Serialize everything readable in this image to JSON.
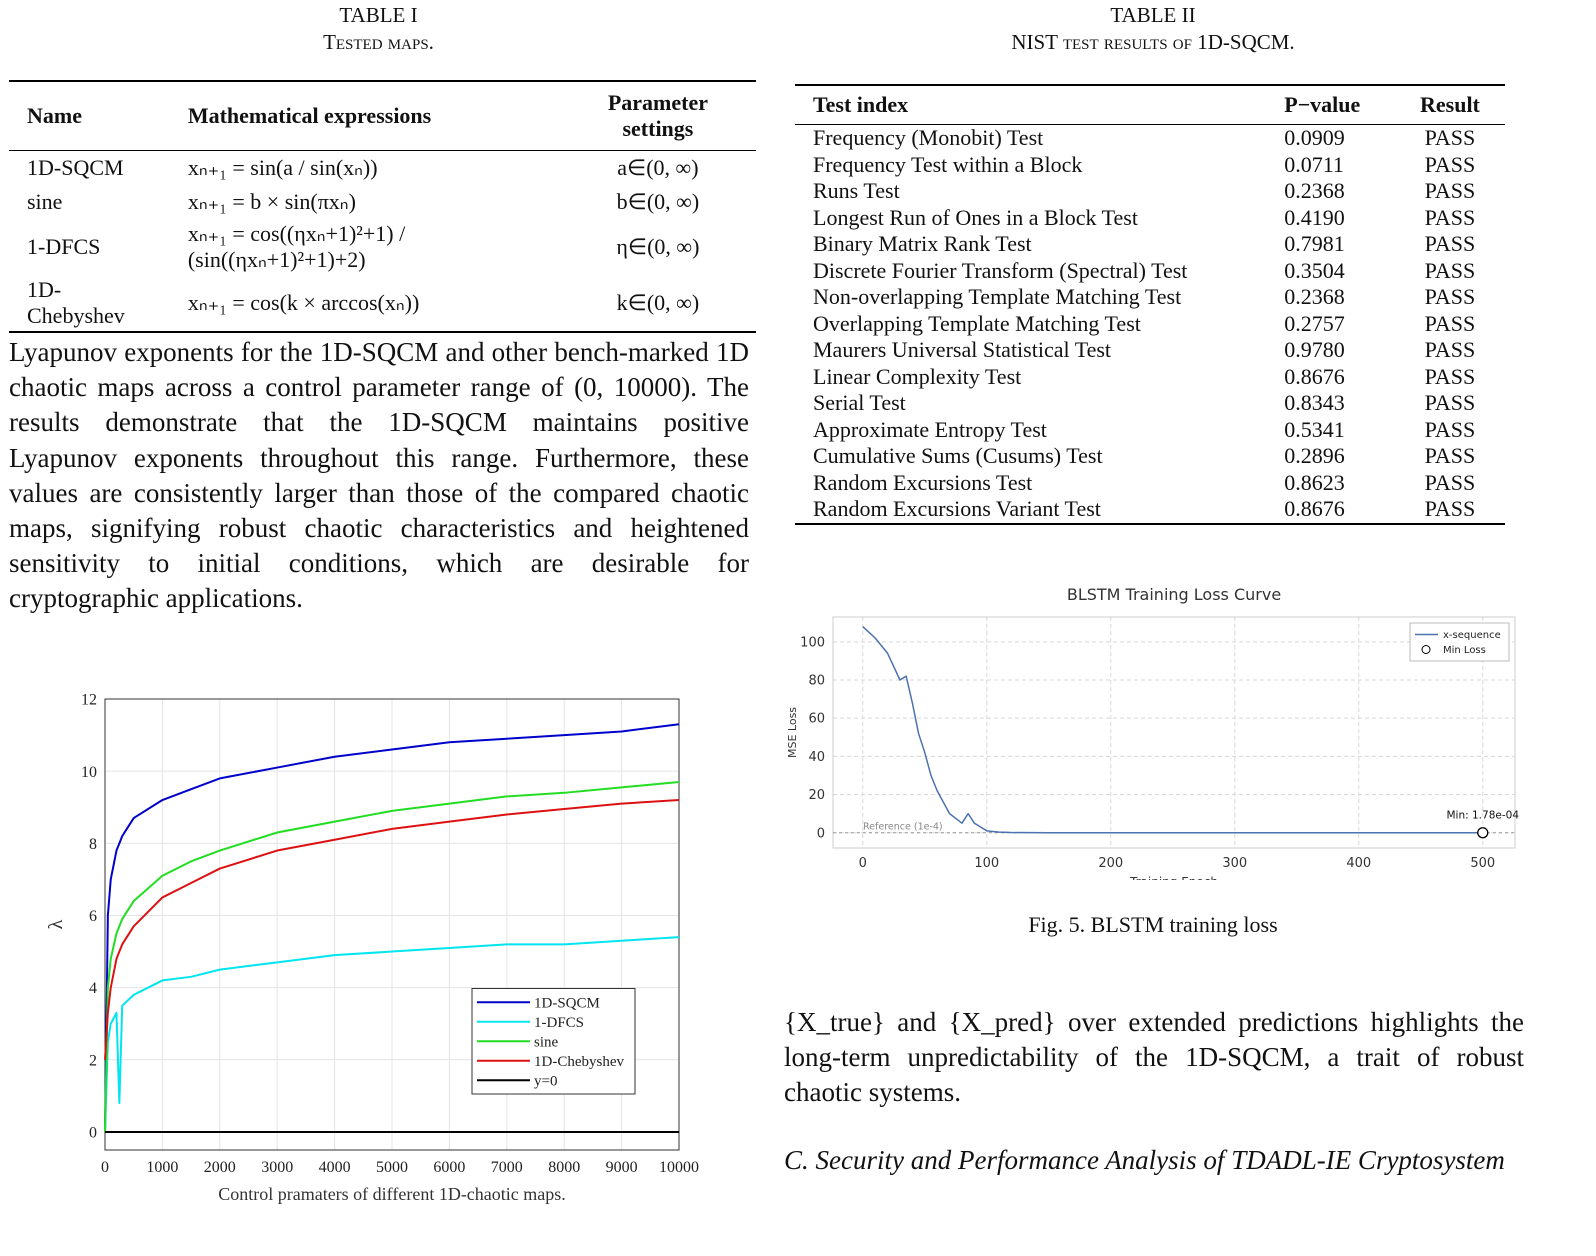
{
  "table1": {
    "caption_number": "TABLE I",
    "caption": "Tested maps.",
    "header": [
      "Name",
      "Mathematical expressions",
      "Parameter settings"
    ],
    "rows": [
      [
        "1D-SQCM",
        "xₙ₊₁ = sin(a / sin(xₙ))",
        "a∈(0, ∞)"
      ],
      [
        "sine",
        "xₙ₊₁ = b × sin(πxₙ)",
        "b∈(0, ∞)"
      ],
      [
        "1-DFCS",
        "xₙ₊₁ = cos((ηxₙ+1)²+1) / (sin((ηxₙ+1)²+1)+2)",
        "η∈(0, ∞)"
      ],
      [
        "1D-Chebyshev",
        "xₙ₊₁ = cos(k × arccos(xₙ))",
        "k∈(0, ∞)"
      ]
    ]
  },
  "paragraph1": "Lyapunov exponents for the 1D-SQCM and other bench-marked 1D chaotic maps across a control parameter range of (0, 10000). The results demonstrate that the 1D-SQCM maintains positive Lyapunov exponents throughout this range. Furthermore, these values are consistently larger than those of the compared chaotic maps, signifying robust chaotic characteristics and heightened sensitivity to initial conditions, which are desirable for cryptographic applications.",
  "table2": {
    "caption_number": "TABLE II",
    "caption": "NIST test results of 1D-SQCM.",
    "header": [
      "Test index",
      "P−value",
      "Result"
    ],
    "rows": [
      [
        "Frequency (Monobit) Test",
        "0.0909",
        "PASS"
      ],
      [
        "Frequency Test within a Block",
        "0.0711",
        "PASS"
      ],
      [
        "Runs Test",
        "0.2368",
        "PASS"
      ],
      [
        "Longest Run of Ones in a Block Test",
        "0.4190",
        "PASS"
      ],
      [
        "Binary Matrix Rank Test",
        "0.7981",
        "PASS"
      ],
      [
        "Discrete Fourier Transform (Spectral) Test",
        "0.3504",
        "PASS"
      ],
      [
        "Non-overlapping Template Matching Test",
        "0.2368",
        "PASS"
      ],
      [
        "Overlapping Template Matching Test",
        "0.2757",
        "PASS"
      ],
      [
        "Maurers Universal Statistical Test",
        "0.9780",
        "PASS"
      ],
      [
        "Linear Complexity Test",
        "0.8676",
        "PASS"
      ],
      [
        "Serial Test",
        "0.8343",
        "PASS"
      ],
      [
        "Approximate Entropy Test",
        "0.5341",
        "PASS"
      ],
      [
        "Cumulative Sums (Cusums) Test",
        "0.2896",
        "PASS"
      ],
      [
        "Random Excursions Test",
        "0.8623",
        "PASS"
      ],
      [
        "Random Excursions Variant Test",
        "0.8676",
        "PASS"
      ]
    ]
  },
  "chart_data": [
    {
      "type": "line",
      "xlabel": "Control pramaters of different 1D-chaotic maps.",
      "ylabel": "λ",
      "x": [
        0,
        50,
        100,
        200,
        250,
        300,
        500,
        1000,
        1500,
        2000,
        3000,
        4000,
        5000,
        6000,
        7000,
        8000,
        9000,
        10000
      ],
      "series": [
        {
          "name": "1D-SQCM",
          "color": "#0000cc",
          "values": [
            0,
            6,
            7,
            7.8,
            8.0,
            8.2,
            8.7,
            9.2,
            9.5,
            9.8,
            10.1,
            10.4,
            10.6,
            10.8,
            10.9,
            11.0,
            11.1,
            11.3
          ]
        },
        {
          "name": "1-DFCS",
          "color": "#00e5f0",
          "values": [
            0,
            2.5,
            3,
            3.3,
            0.8,
            3.5,
            3.8,
            4.2,
            4.3,
            4.5,
            4.7,
            4.9,
            5.0,
            5.1,
            5.2,
            5.2,
            5.3,
            5.4
          ]
        },
        {
          "name": "sine",
          "color": "#22dd22",
          "values": [
            0,
            4,
            4.8,
            5.5,
            5.7,
            5.9,
            6.4,
            7.1,
            7.5,
            7.8,
            8.3,
            8.6,
            8.9,
            9.1,
            9.3,
            9.4,
            9.55,
            9.7
          ]
        },
        {
          "name": "1D-Chebyshev",
          "color": "#dd1111",
          "values": [
            2,
            3.3,
            4,
            4.8,
            5.0,
            5.2,
            5.7,
            6.5,
            6.9,
            7.3,
            7.8,
            8.1,
            8.4,
            8.6,
            8.8,
            8.95,
            9.1,
            9.2
          ]
        },
        {
          "name": "y=0",
          "color": "#000000",
          "values": [
            0,
            0,
            0,
            0,
            0,
            0,
            0,
            0,
            0,
            0,
            0,
            0,
            0,
            0,
            0,
            0,
            0,
            0
          ]
        }
      ],
      "xlim": [
        0,
        10000
      ],
      "xticks": [
        0,
        1000,
        2000,
        3000,
        4000,
        5000,
        6000,
        7000,
        8000,
        9000,
        10000
      ],
      "ylim": [
        -0.5,
        12
      ],
      "yticks": [
        0,
        2,
        4,
        6,
        8,
        10,
        12
      ],
      "grid": true,
      "legend": "lower right"
    },
    {
      "type": "line",
      "title": "BLSTM Training Loss Curve",
      "xlabel": "Training Epoch",
      "ylabel": "MSE Loss",
      "series": [
        {
          "name": "x-sequence",
          "color": "#4c72b0",
          "x": [
            0,
            5,
            10,
            20,
            30,
            35,
            40,
            45,
            50,
            55,
            60,
            70,
            80,
            85,
            90,
            95,
            100,
            110,
            120,
            150,
            200,
            300,
            400,
            500
          ],
          "values": [
            108,
            105,
            102,
            94,
            80,
            82,
            68,
            52,
            42,
            30,
            22,
            10,
            5,
            10,
            5,
            3,
            1,
            0.3,
            0.1,
            0.01,
            0.001,
            0.0005,
            0.0003,
            0.000178
          ]
        },
        {
          "name": "Min Loss",
          "color": "#000000",
          "marker": "circle",
          "x": [
            500
          ],
          "values": [
            0.000178
          ],
          "value_labels": [
            "Min: 1.78e-04"
          ]
        }
      ],
      "reference_line": {
        "value": 0.0001,
        "label": "Reference (1e-4)"
      },
      "xlim": [
        -24,
        526
      ],
      "xticks": [
        0,
        100,
        200,
        300,
        400,
        500
      ],
      "ylim": [
        -8,
        113
      ],
      "yticks": [
        0,
        20,
        40,
        60,
        80,
        100
      ],
      "grid": true,
      "legend": "upper right"
    }
  ],
  "figure_caption": "Fig. 5.  BLSTM training loss",
  "paragraph2": "{X_true} and {X_pred} over extended predictions highlights the long-term unpredictability of the 1D-SQCM, a trait of robust chaotic systems.",
  "section_heading": "C. Security and Performance Analysis of TDADL-IE Cryptosystem"
}
